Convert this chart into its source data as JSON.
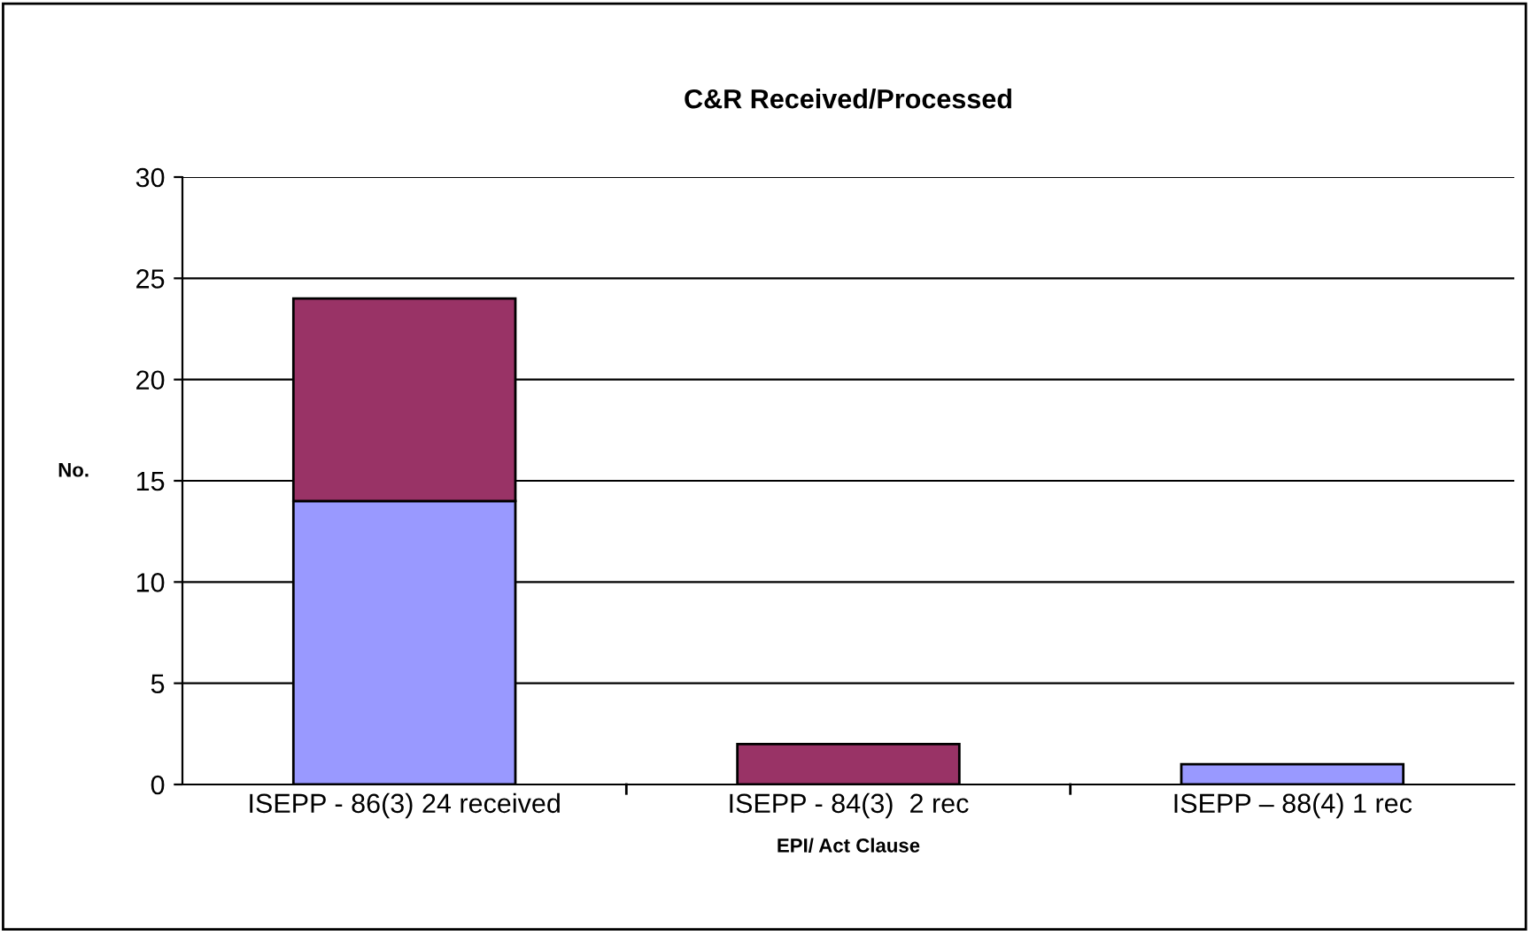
{
  "chart_data": {
    "type": "bar",
    "title": "C&R Received/Processed",
    "xlabel": "EPI/ Act Clause",
    "ylabel": "No.",
    "categories": [
      "ISEPP - 86(3) 24 received",
      "ISEPP - 84(3)  2 rec",
      "ISEPP – 88(4) 1 rec"
    ],
    "stacked": true,
    "series": [
      {
        "color": "#9999ff",
        "values": [
          14,
          0,
          1
        ]
      },
      {
        "color": "#993366",
        "values": [
          10,
          2,
          0
        ]
      }
    ],
    "ylim": [
      0,
      30
    ],
    "yticks": [
      0,
      5,
      10,
      15,
      20,
      25,
      30
    ],
    "grid": "y",
    "legend": false
  }
}
